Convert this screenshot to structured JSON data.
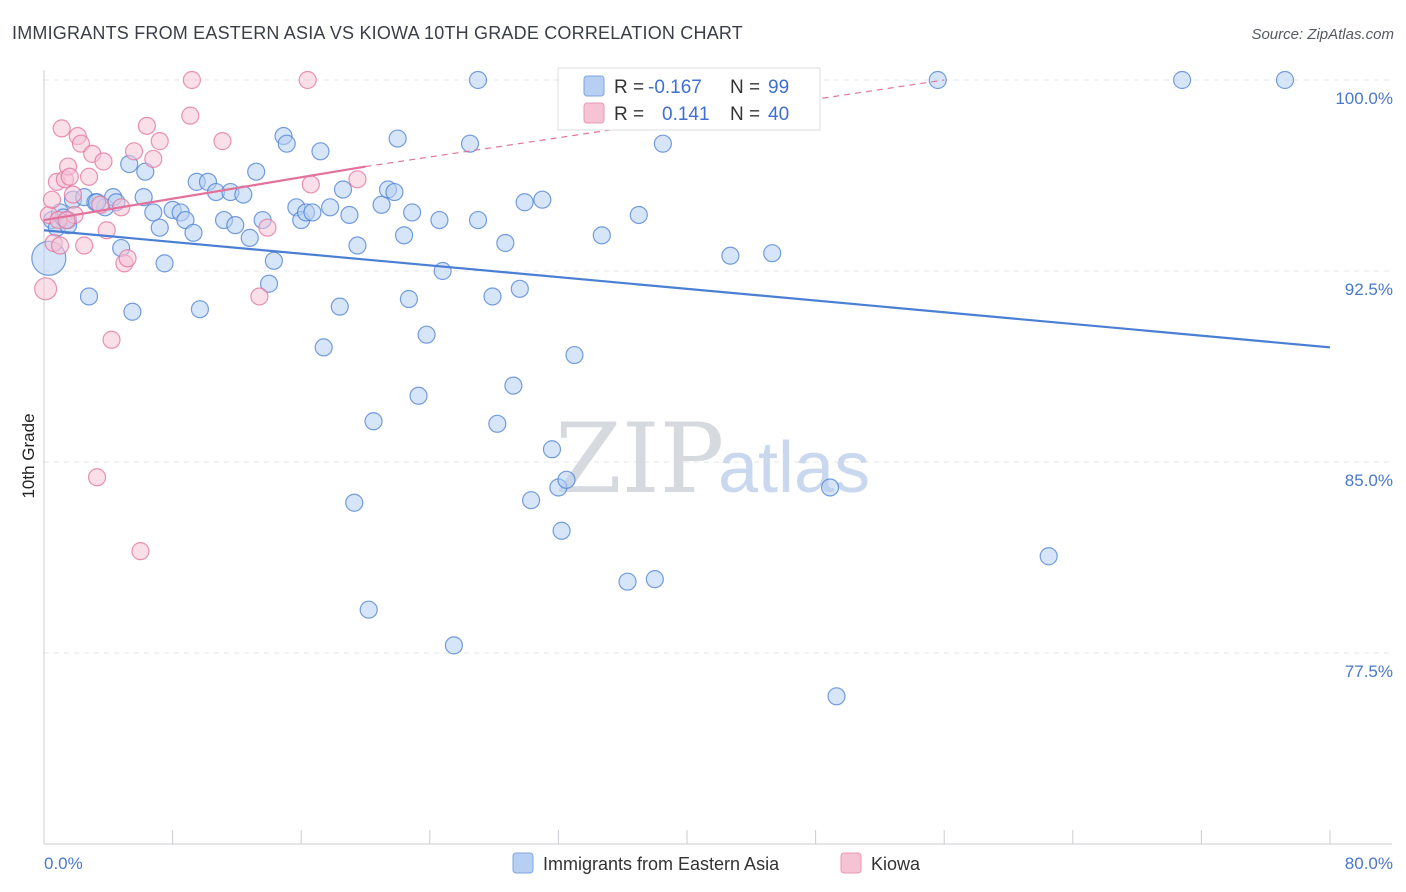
{
  "title": "IMMIGRANTS FROM EASTERN ASIA VS KIOWA 10TH GRADE CORRELATION CHART",
  "source": "Source: ZipAtlas.com",
  "watermark": {
    "zip": "ZIP",
    "atlas": "atlas"
  },
  "legend": {
    "rows": [
      {
        "r_label": "R =",
        "r_value": "-0.167",
        "n_label": "N =",
        "n_value": "99"
      },
      {
        "r_label": "R =",
        "r_value": "0.141",
        "n_label": "N =",
        "n_value": "40"
      }
    ]
  },
  "colors": {
    "blue": "#4a7fd4",
    "blue_fill": "#b7cff2",
    "pink": "#e2719b",
    "pink_fill": "#f6c3d5",
    "grid": "#e3e6ea",
    "axis_text": "#4a78c8"
  },
  "chart_data": {
    "type": "scatter",
    "title": "IMMIGRANTS FROM EASTERN ASIA VS KIOWA 10TH GRADE CORRELATION CHART",
    "xlabel": "",
    "ylabel": "10th Grade",
    "xlim": [
      0,
      80
    ],
    "ylim": [
      70,
      101
    ],
    "x_tick_labels": [
      "0.0%",
      "80.0%"
    ],
    "y_ticks": [
      100.0,
      92.5,
      85.0,
      77.5
    ],
    "y_tick_labels": [
      "100.0%",
      "92.5%",
      "85.0%",
      "77.5%"
    ],
    "grid": true,
    "legend_position": "top-center",
    "series": [
      {
        "name": "Immigrants from Eastern Asia",
        "color": "#4a7fd4",
        "r": -0.167,
        "n": 99,
        "trend": {
          "x": [
            0,
            80
          ],
          "y": [
            94.1,
            89.5
          ]
        },
        "points": [
          [
            0.3,
            93.0
          ],
          [
            0.5,
            94.5
          ],
          [
            0.8,
            94.2
          ],
          [
            1.0,
            94.8
          ],
          [
            1.2,
            94.6
          ],
          [
            1.5,
            94.5
          ],
          [
            1.8,
            95.3
          ],
          [
            2.5,
            95.4
          ],
          [
            3.2,
            95.2
          ],
          [
            3.8,
            95.0
          ],
          [
            4.3,
            95.4
          ],
          [
            4.5,
            95.2
          ],
          [
            2.8,
            91.5
          ],
          [
            4.8,
            93.4
          ],
          [
            5.5,
            90.9
          ],
          [
            5.3,
            96.7
          ],
          [
            6.3,
            96.4
          ],
          [
            6.2,
            95.4
          ],
          [
            6.8,
            94.8
          ],
          [
            7.2,
            94.2
          ],
          [
            7.5,
            92.8
          ],
          [
            8.0,
            94.9
          ],
          [
            8.5,
            94.8
          ],
          [
            8.8,
            94.5
          ],
          [
            9.3,
            94.0
          ],
          [
            9.7,
            91.0
          ],
          [
            9.5,
            96.0
          ],
          [
            10.2,
            96.0
          ],
          [
            10.7,
            95.6
          ],
          [
            11.2,
            94.5
          ],
          [
            11.6,
            95.6
          ],
          [
            11.9,
            94.3
          ],
          [
            12.4,
            95.5
          ],
          [
            12.8,
            93.8
          ],
          [
            13.2,
            96.4
          ],
          [
            13.6,
            94.5
          ],
          [
            14.0,
            92.0
          ],
          [
            14.3,
            92.9
          ],
          [
            14.9,
            97.8
          ],
          [
            15.1,
            97.5
          ],
          [
            15.7,
            95.0
          ],
          [
            16.0,
            94.5
          ],
          [
            16.3,
            94.8
          ],
          [
            16.7,
            94.8
          ],
          [
            17.2,
            97.2
          ],
          [
            17.4,
            89.5
          ],
          [
            17.8,
            95.0
          ],
          [
            18.6,
            95.7
          ],
          [
            18.4,
            91.1
          ],
          [
            19.0,
            94.7
          ],
          [
            19.5,
            93.5
          ],
          [
            19.3,
            83.4
          ],
          [
            20.2,
            79.2
          ],
          [
            20.5,
            86.6
          ],
          [
            21.0,
            95.1
          ],
          [
            21.4,
            95.7
          ],
          [
            21.8,
            95.6
          ],
          [
            22.0,
            97.7
          ],
          [
            22.4,
            93.9
          ],
          [
            22.7,
            91.4
          ],
          [
            22.9,
            94.8
          ],
          [
            23.3,
            87.6
          ],
          [
            23.8,
            90.0
          ],
          [
            24.6,
            94.5
          ],
          [
            24.8,
            92.5
          ],
          [
            25.5,
            77.8
          ],
          [
            26.5,
            97.5
          ],
          [
            27.0,
            100.0
          ],
          [
            27.0,
            94.5
          ],
          [
            27.9,
            91.5
          ],
          [
            28.2,
            86.5
          ],
          [
            28.7,
            93.6
          ],
          [
            29.2,
            88.0
          ],
          [
            29.6,
            91.8
          ],
          [
            29.9,
            95.2
          ],
          [
            30.3,
            83.5
          ],
          [
            31.0,
            95.3
          ],
          [
            31.6,
            85.5
          ],
          [
            32.0,
            84.0
          ],
          [
            32.2,
            82.3
          ],
          [
            32.5,
            84.3
          ],
          [
            33.0,
            89.2
          ],
          [
            34.7,
            93.9
          ],
          [
            36.3,
            80.3
          ],
          [
            37.0,
            94.7
          ],
          [
            38.0,
            80.4
          ],
          [
            38.5,
            97.5
          ],
          [
            37.8,
            100.0
          ],
          [
            42.7,
            93.1
          ],
          [
            43.2,
            100.0
          ],
          [
            45.3,
            93.2
          ],
          [
            48.9,
            84.0
          ],
          [
            49.3,
            75.8
          ],
          [
            55.6,
            100.0
          ],
          [
            62.5,
            81.3
          ],
          [
            70.8,
            100.0
          ],
          [
            77.2,
            100.0
          ],
          [
            1.5,
            94.3
          ],
          [
            3.3,
            95.2
          ]
        ]
      },
      {
        "name": "Kiowa",
        "color": "#e2719b",
        "r": 0.141,
        "n": 40,
        "trend": {
          "x": [
            0,
            20
          ],
          "y": [
            94.5,
            96.6
          ]
        },
        "trend_extension": {
          "x": [
            20,
            56
          ],
          "y": [
            96.6,
            100.0
          ]
        },
        "points": [
          [
            0.1,
            91.8
          ],
          [
            0.3,
            94.7
          ],
          [
            0.5,
            95.3
          ],
          [
            0.6,
            93.6
          ],
          [
            0.8,
            96.0
          ],
          [
            1.0,
            93.5
          ],
          [
            1.1,
            98.1
          ],
          [
            1.3,
            96.1
          ],
          [
            1.5,
            96.6
          ],
          [
            1.6,
            96.2
          ],
          [
            1.9,
            94.7
          ],
          [
            2.1,
            97.8
          ],
          [
            2.3,
            97.5
          ],
          [
            2.5,
            93.5
          ],
          [
            2.8,
            96.2
          ],
          [
            3.0,
            97.1
          ],
          [
            3.3,
            84.4
          ],
          [
            3.7,
            96.8
          ],
          [
            3.9,
            94.1
          ],
          [
            4.2,
            89.8
          ],
          [
            4.8,
            95.0
          ],
          [
            5.0,
            92.8
          ],
          [
            5.2,
            93.0
          ],
          [
            5.6,
            97.2
          ],
          [
            6.0,
            81.5
          ],
          [
            6.4,
            98.2
          ],
          [
            6.8,
            96.9
          ],
          [
            7.2,
            97.6
          ],
          [
            9.1,
            98.6
          ],
          [
            9.2,
            100.0
          ],
          [
            11.1,
            97.6
          ],
          [
            13.4,
            91.5
          ],
          [
            13.9,
            94.2
          ],
          [
            16.4,
            100.0
          ],
          [
            16.6,
            95.9
          ],
          [
            19.5,
            96.1
          ],
          [
            0.9,
            94.5
          ],
          [
            1.8,
            95.5
          ],
          [
            1.4,
            94.5
          ],
          [
            3.5,
            95.1
          ]
        ]
      }
    ]
  }
}
